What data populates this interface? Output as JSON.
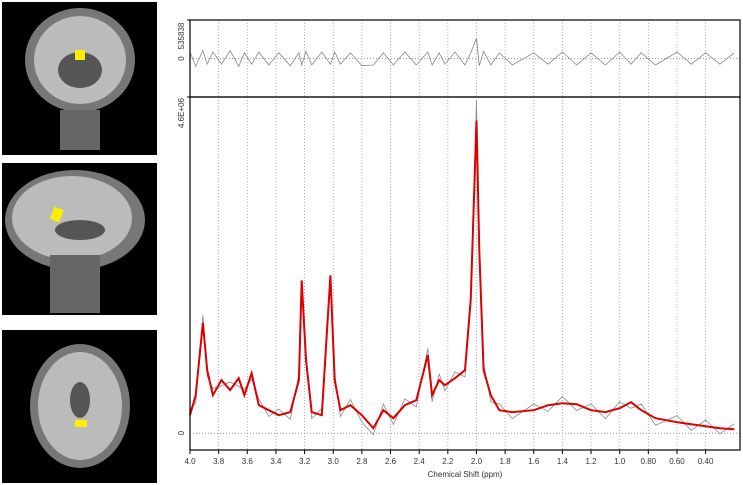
{
  "chart_data": [
    {
      "type": "line",
      "xlim": [
        4.0,
        0.16
      ],
      "ylim": [
        -535838,
        535838
      ],
      "yticks": [
        0,
        535838
      ],
      "x": [
        4.0,
        3.96,
        3.91,
        3.88,
        3.84,
        3.78,
        3.72,
        3.66,
        3.62,
        3.57,
        3.52,
        3.45,
        3.38,
        3.3,
        3.24,
        3.22,
        3.19,
        3.15,
        3.08,
        3.02,
        2.99,
        2.95,
        2.88,
        2.8,
        2.72,
        2.65,
        2.58,
        2.5,
        2.42,
        2.34,
        2.31,
        2.26,
        2.22,
        2.15,
        2.08,
        2.04,
        2.0,
        1.98,
        1.95,
        1.9,
        1.84,
        1.75,
        1.6,
        1.5,
        1.4,
        1.3,
        1.2,
        1.1,
        1.0,
        0.92,
        0.85,
        0.75,
        0.6,
        0.5,
        0.4,
        0.3,
        0.2
      ],
      "series": [
        {
          "color": "#888888",
          "values": [
            90000,
            -110000,
            110000,
            -80000,
            90000,
            -80000,
            110000,
            -110000,
            80000,
            -80000,
            90000,
            -90000,
            80000,
            -100000,
            80000,
            -90000,
            100000,
            -90000,
            90000,
            -80000,
            90000,
            -80000,
            80000,
            -100000,
            -90000,
            80000,
            -90000,
            90000,
            -90000,
            90000,
            -90000,
            80000,
            -80000,
            90000,
            -90000,
            80000,
            280000,
            -100000,
            100000,
            -90000,
            80000,
            -90000,
            80000,
            -80000,
            90000,
            -90000,
            80000,
            -90000,
            90000,
            -80000,
            80000,
            -90000,
            90000,
            -80000,
            80000,
            -80000,
            80000
          ]
        }
      ]
    },
    {
      "type": "line",
      "xlabel": "Chemical Shift (ppm)",
      "xlim": [
        4.0,
        0.16
      ],
      "ylim": [
        -230000,
        4600000
      ],
      "xticks": [
        {
          "value": 4,
          "label": "4.0"
        },
        3.8,
        3.6,
        3.4,
        3.2,
        {
          "value": 3,
          "label": "3.0"
        },
        2.8,
        2.6,
        2.4,
        2.2,
        {
          "value": 2,
          "label": "2.0"
        },
        1.8,
        1.6,
        1.4,
        1.2,
        {
          "value": 1,
          "label": "1.0"
        },
        {
          "value": 0.8,
          "label": "0.80"
        },
        {
          "value": 0.6,
          "label": "0.60"
        },
        {
          "value": 0.4,
          "label": "0.40"
        }
      ],
      "yticks": [
        0,
        {
          "value": 4600000,
          "label": "4.6E+06"
        }
      ],
      "grid": true,
      "x": [
        4.0,
        3.96,
        3.91,
        3.88,
        3.84,
        3.78,
        3.72,
        3.66,
        3.62,
        3.57,
        3.52,
        3.45,
        3.38,
        3.3,
        3.24,
        3.22,
        3.19,
        3.15,
        3.08,
        3.02,
        2.99,
        2.95,
        2.88,
        2.8,
        2.72,
        2.65,
        2.58,
        2.5,
        2.42,
        2.34,
        2.31,
        2.26,
        2.22,
        2.15,
        2.08,
        2.04,
        2.0,
        1.98,
        1.95,
        1.9,
        1.84,
        1.75,
        1.6,
        1.5,
        1.4,
        1.3,
        1.2,
        1.1,
        1.0,
        0.92,
        0.85,
        0.75,
        0.6,
        0.5,
        0.4,
        0.3,
        0.2
      ],
      "series": [
        {
          "color": "#8a8a8a",
          "values": [
            330000,
            410000,
            1620000,
            780000,
            610000,
            650000,
            700000,
            640000,
            600000,
            740000,
            470000,
            230000,
            330000,
            190000,
            810000,
            2000000,
            1100000,
            200000,
            340000,
            2080000,
            820000,
            230000,
            460000,
            150000,
            -20000,
            400000,
            120000,
            470000,
            360000,
            1160000,
            430000,
            810000,
            580000,
            840000,
            770000,
            1900000,
            4560000,
            2400000,
            960000,
            430000,
            400000,
            200000,
            400000,
            300000,
            500000,
            310000,
            400000,
            200000,
            430000,
            340000,
            400000,
            110000,
            240000,
            40000,
            180000,
            -10000,
            130000
          ]
        },
        {
          "color": "#dd0000",
          "values": [
            246000,
            520000,
            1510000,
            862000,
            520000,
            726000,
            589000,
            753000,
            520000,
            821000,
            383000,
            315000,
            246000,
            288000,
            726000,
            2090000,
            1000000,
            288000,
            246000,
            2160000,
            726000,
            315000,
            383000,
            246000,
            68000,
            315000,
            205000,
            383000,
            452000,
            1070000,
            520000,
            726000,
            657000,
            753000,
            862000,
            1820000,
            4280000,
            2500000,
            862000,
            520000,
            315000,
            288000,
            315000,
            383000,
            411000,
            397000,
            315000,
            288000,
            342000,
            424000,
            315000,
            205000,
            151000,
            123000,
            96000,
            68000,
            55000
          ]
        }
      ]
    }
  ]
}
